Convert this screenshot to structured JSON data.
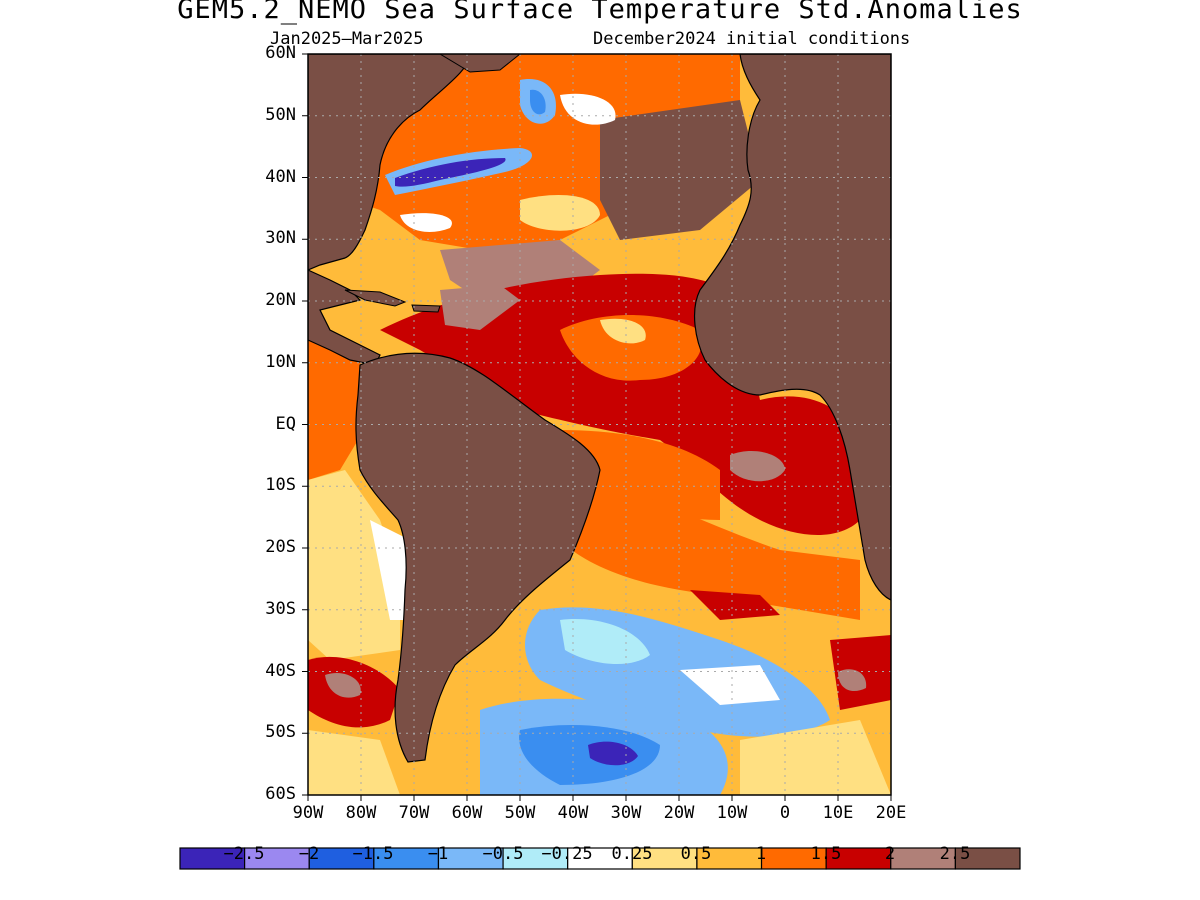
{
  "title": "GEM5.2_NEMO Sea Surface Temperature Std.Anomalies",
  "subtitle_left": "Jan2025–Mar2025",
  "subtitle_right": "December2024 initial conditions",
  "lat_labels": [
    "60N",
    "50N",
    "40N",
    "30N",
    "20N",
    "10N",
    "EQ",
    "10S",
    "20S",
    "30S",
    "40S",
    "50S",
    "60S"
  ],
  "lon_labels": [
    "90W",
    "80W",
    "70W",
    "60W",
    "50W",
    "40W",
    "30W",
    "20W",
    "10W",
    "0",
    "10E",
    "20E"
  ],
  "colorbar": {
    "colors": [
      "#3b24b8",
      "#9b88f0",
      "#1f5fe0",
      "#3a8ef0",
      "#7ab8f8",
      "#b0ecf8",
      "#ffffff",
      "#ffe082",
      "#ffbb3a",
      "#ff6a00",
      "#c80000",
      "#b08078",
      "#7a4f45"
    ],
    "labels": [
      "−2.5",
      "−2",
      "−1.5",
      "−1",
      "−0.5",
      "−0.25",
      "0.25",
      "0.5",
      "1",
      "1.5",
      "2",
      "2.5"
    ]
  },
  "colors": {
    "land": "#7a4f45",
    "frame": "#000000"
  }
}
